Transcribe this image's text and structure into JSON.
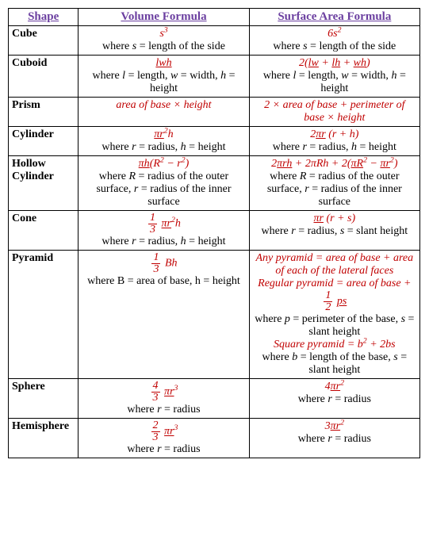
{
  "colors": {
    "header_text": "#6b3fa0",
    "formula_text": "#c00000",
    "body_text": "#000000",
    "border": "#000000",
    "background": "#ffffff"
  },
  "headers": {
    "shape": "Shape",
    "volume": "Volume Formula",
    "surface": "Surface Area Formula"
  },
  "rows": [
    {
      "shape": "Cube",
      "volume_formula_html": "s<sup>3</sup>",
      "volume_desc_html": "where <span class='var'>s</span> = length of the side",
      "surface_formula_html": "6s<sup>2</sup>",
      "surface_desc_html": "where <span class='var'>s</span> = length of the side"
    },
    {
      "shape": "Cuboid",
      "volume_formula_html": "<span class='u'>lwh</span>",
      "volume_desc_html": "where <span class='var'>l</span> = length, <span class='var'>w</span> = width, <span class='var'>h</span> = height",
      "surface_formula_html": "2(<span class='u'>lw</span> + <span class='u'>lh</span> + <span class='u'>wh</span>)",
      "surface_desc_html": "where <span class='var'>l</span> = length, <span class='var'>w</span> = width, <span class='var'>h</span> = height"
    },
    {
      "shape": "Prism",
      "volume_formula_html": "area of base × height",
      "volume_desc_html": "",
      "surface_formula_html": "2 × area of base + perimeter of base × height",
      "surface_desc_html": ""
    },
    {
      "shape": "Cylinder",
      "volume_formula_html": "<span class='u'>πr</span><sup>2</sup>h",
      "volume_desc_html": "where <span class='var'>r</span> = radius, <span class='var'>h</span> = height",
      "surface_formula_html": "2<span class='u'>πr</span> (r + h)",
      "surface_desc_html": "where <span class='var'>r</span> = radius, <span class='var'>h</span> = height"
    },
    {
      "shape": "Hollow Cylinder",
      "volume_formula_html": "<span class='u'>πh</span>(R<sup>2</sup> − r<sup>2</sup>)",
      "volume_desc_html": "where <span class='var'>R</span> = radius of the outer surface, <span class='var'>r</span> = radius of the inner surface",
      "surface_formula_html": "2<span class='u'>πrh</span> + 2πRh + 2(<span class='u'>πR</span><sup>2</sup> − <span class='u'>πr</span><sup>2</sup>)",
      "surface_desc_html": "where <span class='var'>R</span> = radius of the outer surface, <span class='var'>r</span> = radius of the inner surface"
    },
    {
      "shape": "Cone",
      "volume_formula_html": "<span class='frac'><span class='num'>1</span><span class='den'>3</span></span> <span class='u'>πr</span><sup>2</sup>h",
      "volume_desc_html": "where <span class='var'>r</span> = radius, <span class='var'>h</span> = height",
      "surface_formula_html": "<span class='u'>πr</span> (r + s)",
      "surface_desc_html": "where <span class='var'>r</span> = radius, <span class='var'>s</span> = slant height"
    },
    {
      "shape": "Pyramid",
      "volume_formula_html": "<span class='frac'><span class='num'>1</span><span class='den'>3</span></span> Bh",
      "volume_desc_html": "where B = area of base, h = height",
      "surface_formula_html": "Any pyramid = area of base + area of each of the lateral faces<br>Regular pyramid = area of base + <span class='frac'><span class='num'>1</span><span class='den'>2</span></span> <span class='u'>ps</span>",
      "surface_desc_html": "where <span class='var'>p</span> = perimeter of the base, <span class='var'>s</span> = slant height",
      "surface_extra_formula_html": "Square pyramid = b<sup>2</sup> + 2bs",
      "surface_extra_desc_html": "where <span class='var'>b</span> = length of the base, <span class='var'>s</span> = slant height"
    },
    {
      "shape": "Sphere",
      "volume_formula_html": "<span class='frac'><span class='num'>4</span><span class='den'>3</span></span> <span class='u'>πr</span><sup>3</sup>",
      "volume_desc_html": "where <span class='var'>r</span> = radius",
      "surface_formula_html": "4<span class='u'>πr</span><sup>2</sup>",
      "surface_desc_html": "where <span class='var'>r</span> = radius"
    },
    {
      "shape": "Hemisphere",
      "volume_formula_html": "<span class='frac'><span class='num'>2</span><span class='den'>3</span></span> <span class='u'>πr</span><sup>3</sup>",
      "volume_desc_html": "where <span class='var'>r</span> = radius",
      "surface_formula_html": "3<span class='u'>πr</span><sup>2</sup>",
      "surface_desc_html": "where <span class='var'>r</span> = radius"
    }
  ]
}
